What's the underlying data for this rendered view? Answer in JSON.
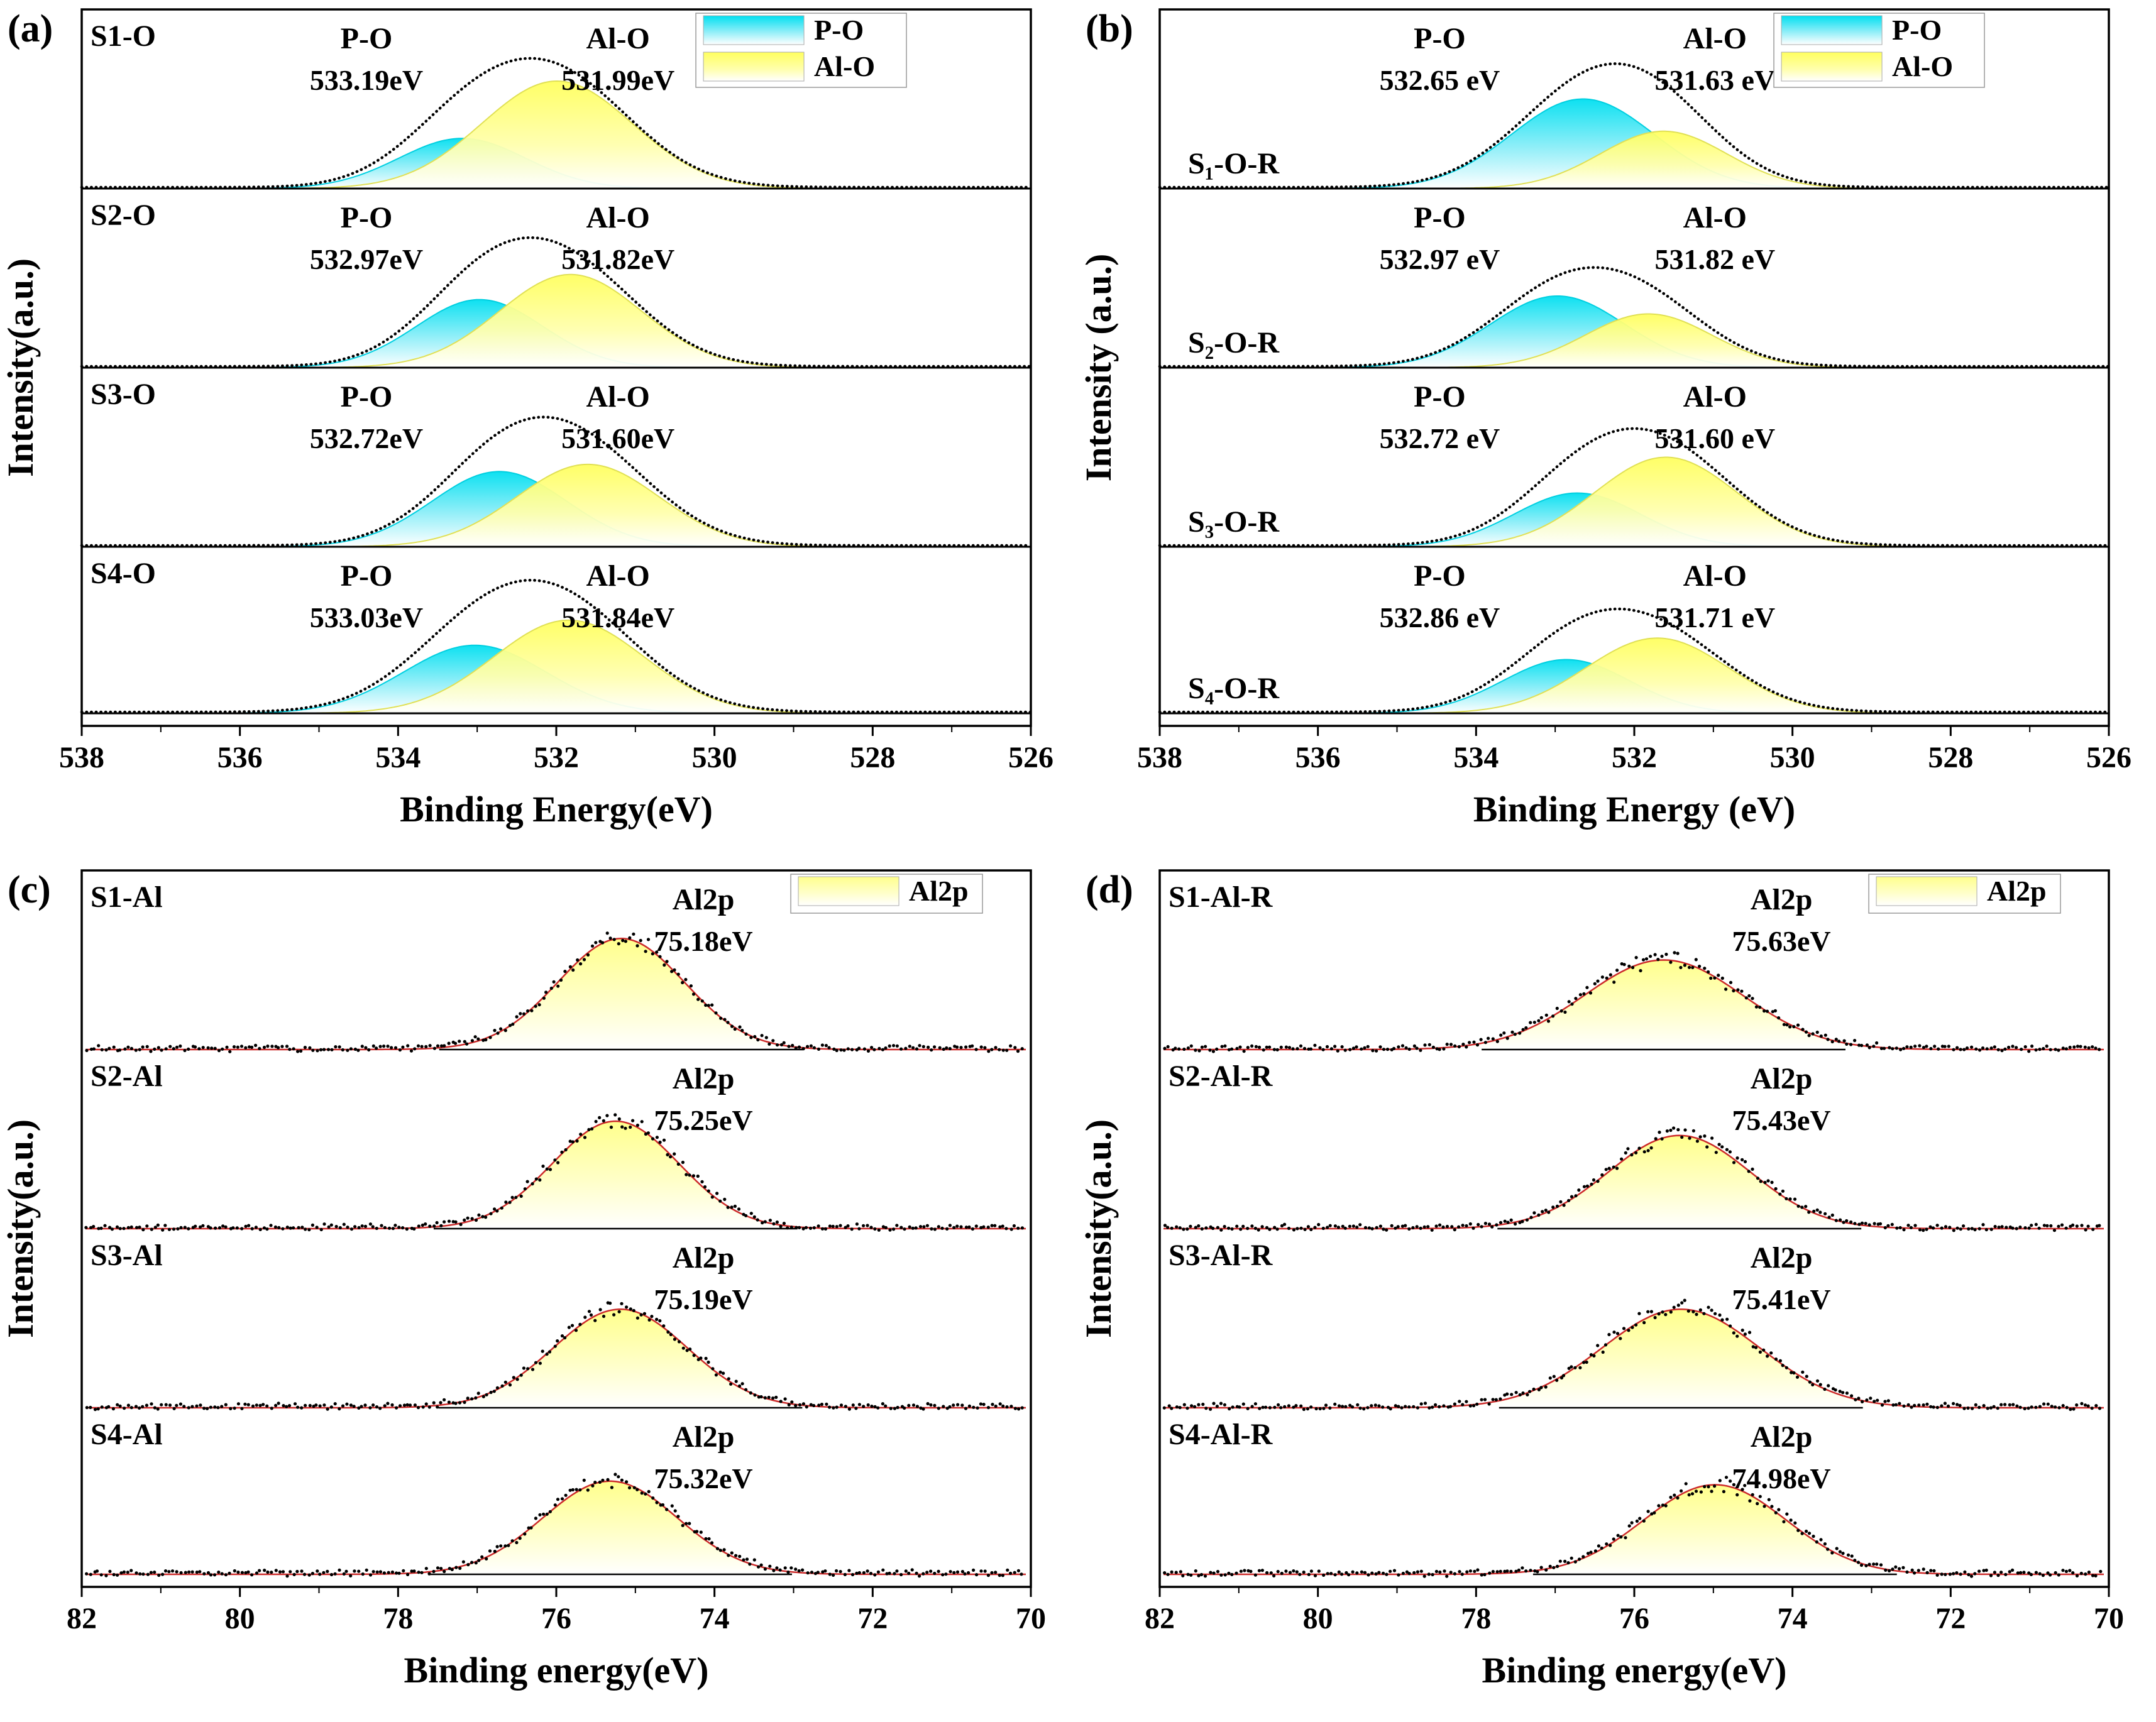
{
  "colors": {
    "envelope": "#000000",
    "fit_line": "#cc2a2a",
    "axis": "#000000",
    "po_stroke": "#00cfe0",
    "alo_stroke": "#e0e055",
    "po_gradient": [
      [
        "0%",
        "#00dff0"
      ],
      [
        "55%",
        "#8deef8"
      ],
      [
        "100%",
        "#ffffff"
      ]
    ],
    "alo_gradient": [
      [
        "0%",
        "#ffff5e"
      ],
      [
        "60%",
        "#ffffae"
      ],
      [
        "100%",
        "#ffffff"
      ]
    ],
    "al2p_gradient": [
      [
        "0%",
        "#ffff8c"
      ],
      [
        "55%",
        "#ffffc8"
      ],
      [
        "100%",
        "#ffffff"
      ]
    ]
  },
  "chart_data": [
    {
      "type": "o1s",
      "panel_letter": "(a)",
      "xlabel": "Binding Energy(eV)",
      "ylabel": "Intensity(a.u.)",
      "x_range": [
        538,
        526
      ],
      "x_ticks": [
        538,
        536,
        534,
        532,
        530,
        528,
        526
      ],
      "label_style": "top-left",
      "ann_x": [
        0.3,
        0.565
      ],
      "legend_x": 0.655,
      "legend": [
        {
          "label": "P-O",
          "swatch": "cyan"
        },
        {
          "label": "Al-O",
          "swatch": "yellow"
        }
      ],
      "spectra": [
        {
          "sample": "S1-O",
          "peaks": [
            {
              "name": "P-O",
              "label": "533.19eV",
              "center": 533.19,
              "sigma": 0.8,
              "amp": 0.28
            },
            {
              "name": "Al-O",
              "label": "531.99eV",
              "center": 531.99,
              "sigma": 0.95,
              "amp": 0.6
            }
          ]
        },
        {
          "sample": "S2-O",
          "peaks": [
            {
              "name": "P-O",
              "label": "532.97eV",
              "center": 532.97,
              "sigma": 0.8,
              "amp": 0.38
            },
            {
              "name": "Al-O",
              "label": "531.82eV",
              "center": 531.82,
              "sigma": 0.9,
              "amp": 0.52
            }
          ]
        },
        {
          "sample": "S3-O",
          "peaks": [
            {
              "name": "P-O",
              "label": "532.72eV",
              "center": 532.72,
              "sigma": 0.85,
              "amp": 0.42
            },
            {
              "name": "Al-O",
              "label": "531.60eV",
              "center": 531.6,
              "sigma": 0.9,
              "amp": 0.46
            }
          ]
        },
        {
          "sample": "S4-O",
          "peaks": [
            {
              "name": "P-O",
              "label": "533.03eV",
              "center": 533.03,
              "sigma": 0.9,
              "amp": 0.38
            },
            {
              "name": "Al-O",
              "label": "531.84eV",
              "center": 531.84,
              "sigma": 0.95,
              "amp": 0.52
            }
          ]
        }
      ]
    },
    {
      "type": "o1s",
      "panel_letter": "(b)",
      "xlabel": "Binding Energy (eV)",
      "ylabel": "Intensity (a.u.)",
      "x_range": [
        538,
        526
      ],
      "x_ticks": [
        538,
        536,
        534,
        532,
        530,
        528,
        526
      ],
      "label_style": "baseline-left",
      "ann_x": [
        0.295,
        0.585
      ],
      "legend_x": 0.655,
      "legend": [
        {
          "label": "P-O",
          "swatch": "cyan"
        },
        {
          "label": "Al-O",
          "swatch": "yellow"
        }
      ],
      "spectra": [
        {
          "sample": "S₁-O-R",
          "peaks": [
            {
              "name": "P-O",
              "label": "532.65 eV",
              "center": 532.65,
              "sigma": 0.9,
              "amp": 0.5
            },
            {
              "name": "Al-O",
              "label": "531.63 eV",
              "center": 531.63,
              "sigma": 0.8,
              "amp": 0.32
            }
          ]
        },
        {
          "sample": "S₂-O-R",
          "peaks": [
            {
              "name": "P-O",
              "label": "532.97 eV",
              "center": 532.97,
              "sigma": 0.85,
              "amp": 0.4
            },
            {
              "name": "Al-O",
              "label": "531.82 eV",
              "center": 531.82,
              "sigma": 0.8,
              "amp": 0.3
            }
          ]
        },
        {
          "sample": "S₃-O-R",
          "peaks": [
            {
              "name": "P-O",
              "label": "532.72 eV",
              "center": 532.72,
              "sigma": 0.8,
              "amp": 0.3
            },
            {
              "name": "Al-O",
              "label": "531.60 eV",
              "center": 531.6,
              "sigma": 0.9,
              "amp": 0.5
            }
          ]
        },
        {
          "sample": "S₄-O-R",
          "peaks": [
            {
              "name": "P-O",
              "label": "532.86 eV",
              "center": 532.86,
              "sigma": 0.8,
              "amp": 0.3
            },
            {
              "name": "Al-O",
              "label": "531.71 eV",
              "center": 531.71,
              "sigma": 0.9,
              "amp": 0.42
            }
          ]
        }
      ]
    },
    {
      "type": "al2p",
      "panel_letter": "(c)",
      "xlabel": "Binding energy(eV)",
      "ylabel": "Intensity(a.u.)",
      "x_range": [
        82,
        70
      ],
      "x_ticks": [
        82,
        80,
        78,
        76,
        74,
        72,
        70
      ],
      "label_style": "top-left",
      "ann_x": [
        0.655
      ],
      "legend_x": 0.755,
      "legend": [
        {
          "label": "Al2p",
          "swatch": "al2p"
        }
      ],
      "spectra": [
        {
          "sample": "S1-Al",
          "peaks": [
            {
              "name": "Al2p",
              "label": "75.18eV",
              "center": 75.18,
              "sigma": 0.8,
              "amp": 0.62
            }
          ]
        },
        {
          "sample": "S2-Al",
          "peaks": [
            {
              "name": "Al2p",
              "label": "75.25eV",
              "center": 75.25,
              "sigma": 0.8,
              "amp": 0.6
            }
          ]
        },
        {
          "sample": "S3-Al",
          "peaks": [
            {
              "name": "Al2p",
              "label": "75.19eV",
              "center": 75.19,
              "sigma": 0.85,
              "amp": 0.55
            }
          ]
        },
        {
          "sample": "S4-Al",
          "peaks": [
            {
              "name": "Al2p",
              "label": "75.32eV",
              "center": 75.32,
              "sigma": 0.85,
              "amp": 0.52
            }
          ]
        }
      ]
    },
    {
      "type": "al2p",
      "panel_letter": "(d)",
      "xlabel": "Binding energy(eV)",
      "ylabel": "Intensity(a.u.)",
      "x_range": [
        82,
        70
      ],
      "x_ticks": [
        82,
        80,
        78,
        76,
        74,
        72,
        70
      ],
      "label_style": "top-left",
      "ann_x": [
        0.655
      ],
      "legend_x": 0.755,
      "legend": [
        {
          "label": "Al2p",
          "swatch": "al2p"
        }
      ],
      "spectra": [
        {
          "sample": "S1-Al-R",
          "peaks": [
            {
              "name": "Al2p",
              "label": "75.63eV",
              "center": 75.63,
              "sigma": 1.0,
              "amp": 0.5
            }
          ]
        },
        {
          "sample": "S2-Al-R",
          "peaks": [
            {
              "name": "Al2p",
              "label": "75.43eV",
              "center": 75.43,
              "sigma": 0.9,
              "amp": 0.52
            }
          ]
        },
        {
          "sample": "S3-Al-R",
          "peaks": [
            {
              "name": "Al2p",
              "label": "75.41eV",
              "center": 75.41,
              "sigma": 1.0,
              "amp": 0.55
            }
          ]
        },
        {
          "sample": "S4-Al-R",
          "peaks": [
            {
              "name": "Al2p",
              "label": "74.98eV",
              "center": 74.98,
              "sigma": 0.9,
              "amp": 0.5
            }
          ]
        }
      ]
    }
  ]
}
